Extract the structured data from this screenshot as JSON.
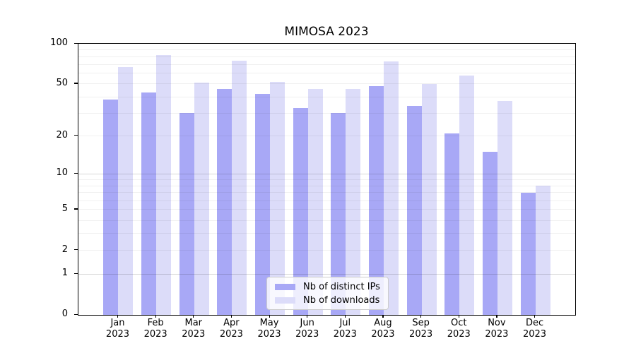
{
  "title": "MIMOSA 2023",
  "colors": {
    "distinct_ips": "#a8a8f6",
    "downloads": "#dcdcf9",
    "grid_minor": "#f0f0f0",
    "grid_major": "#d9d9d9",
    "axis": "#000000",
    "legend_border": "#cccccc"
  },
  "legend": {
    "items": [
      {
        "label": "Nb of distinct IPs",
        "color_key": "distinct_ips"
      },
      {
        "label": "Nb of downloads",
        "color_key": "downloads"
      }
    ]
  },
  "y_axis": {
    "ticks": [
      {
        "label": "100",
        "value": 100
      },
      {
        "label": "50",
        "value": 50
      },
      {
        "label": "20",
        "value": 20
      },
      {
        "label": "10",
        "value": 10
      },
      {
        "label": "5",
        "value": 5
      },
      {
        "label": "2",
        "value": 2
      },
      {
        "label": "1",
        "value": 1
      },
      {
        "label": "0",
        "value": 0
      }
    ]
  },
  "chart_data": {
    "type": "bar",
    "title": "MIMOSA 2023",
    "categories": [
      "Jan 2023",
      "Feb 2023",
      "Mar 2023",
      "Apr 2023",
      "May 2023",
      "Jun 2023",
      "Jul 2023",
      "Aug 2023",
      "Sep 2023",
      "Oct 2023",
      "Nov 2023",
      "Dec 2023"
    ],
    "series": [
      {
        "name": "Nb of distinct IPs",
        "color_key": "distinct_ips",
        "values": [
          38,
          43,
          30,
          46,
          42,
          33,
          30,
          48,
          34,
          21,
          15,
          7
        ]
      },
      {
        "name": "Nb of downloads",
        "color_key": "downloads",
        "values": [
          67,
          82,
          51,
          75,
          52,
          46,
          46,
          74,
          50,
          58,
          37,
          8
        ]
      }
    ],
    "xlabel": "",
    "ylabel": "",
    "yscale": "log1p",
    "ylim": [
      0,
      100
    ],
    "yticks": [
      0,
      1,
      2,
      5,
      10,
      20,
      50,
      100
    ],
    "grid_minor": [
      2,
      3,
      4,
      5,
      6,
      7,
      8,
      9,
      20,
      30,
      40,
      50,
      60,
      70,
      80,
      90
    ],
    "grid_major": [
      1,
      10
    ],
    "grid": "on",
    "legend_position": "lower center"
  }
}
